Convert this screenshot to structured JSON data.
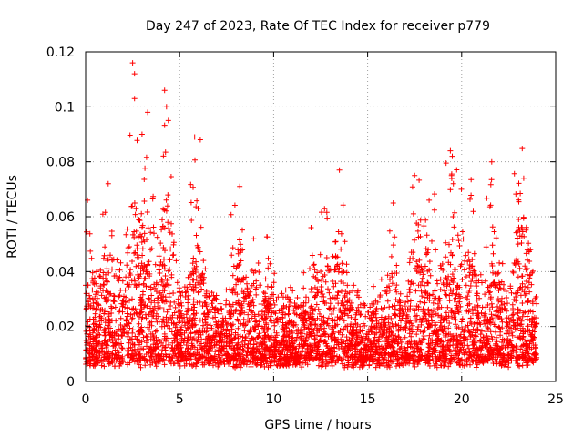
{
  "chart_data": {
    "type": "scatter",
    "title": "Day 247 of 2023, Rate Of TEC Index for receiver p779",
    "xlabel": "GPS time / hours",
    "ylabel": "ROTI / TECUs",
    "xlim": [
      0,
      25
    ],
    "ylim": [
      0,
      0.12
    ],
    "x_ticks": [
      "0",
      "5",
      "10",
      "15",
      "20",
      "25"
    ],
    "y_ticks": [
      "0",
      "0.02",
      "0.04",
      "0.06",
      "0.08",
      "0.1",
      "0.12"
    ],
    "x_tick_values": [
      0,
      5,
      10,
      15,
      20,
      25
    ],
    "y_tick_values": [
      0,
      0.02,
      0.04,
      0.06,
      0.08,
      0.1,
      0.12
    ],
    "grid": true,
    "marker": "+",
    "color": "#ff0000",
    "series": [
      {
        "name": "ROTI",
        "data_range_hours": [
          0,
          24
        ],
        "typical_range": [
          0.005,
          0.035
        ],
        "notable_points": [
          {
            "x": 2.5,
            "y": 0.116
          },
          {
            "x": 2.6,
            "y": 0.112
          },
          {
            "x": 2.6,
            "y": 0.103
          },
          {
            "x": 4.2,
            "y": 0.106
          },
          {
            "x": 4.3,
            "y": 0.1
          },
          {
            "x": 4.4,
            "y": 0.095
          },
          {
            "x": 3.3,
            "y": 0.098
          },
          {
            "x": 3.0,
            "y": 0.09
          },
          {
            "x": 5.8,
            "y": 0.089
          },
          {
            "x": 6.1,
            "y": 0.088
          },
          {
            "x": 1.2,
            "y": 0.072
          },
          {
            "x": 8.2,
            "y": 0.071
          },
          {
            "x": 13.5,
            "y": 0.077
          },
          {
            "x": 17.5,
            "y": 0.075
          },
          {
            "x": 19.4,
            "y": 0.084
          },
          {
            "x": 19.5,
            "y": 0.082
          },
          {
            "x": 21.6,
            "y": 0.08
          },
          {
            "x": 23.3,
            "y": 0.074
          },
          {
            "x": 0.1,
            "y": 0.066
          },
          {
            "x": 0.0,
            "y": 0.035
          }
        ]
      }
    ]
  }
}
